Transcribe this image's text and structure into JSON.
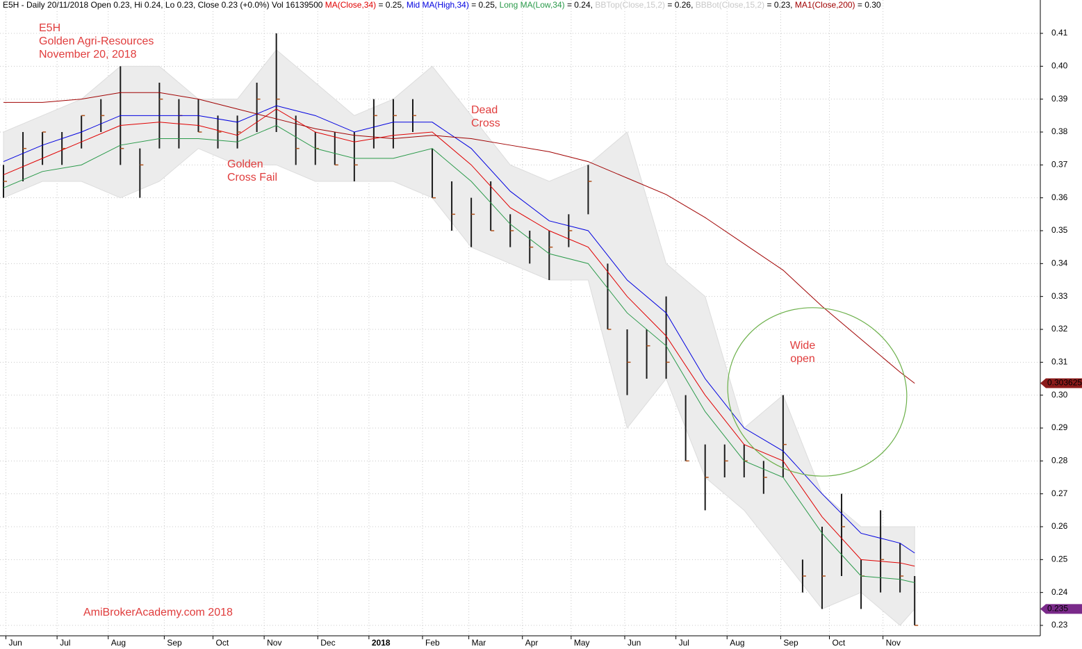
{
  "chart_data": {
    "type": "ohlc",
    "header": [
      {
        "text": "E5H - Daily 20/11/2018 Open 0.23, Hi 0.24, Lo 0.23, Close 0.23 (+0.0%) Vol 16139500 ",
        "color": "#000000"
      },
      {
        "text": "MA(Close,34)",
        "color": "#e00000"
      },
      {
        "text": " = 0.25, ",
        "color": "#000000"
      },
      {
        "text": "Mid MA(High,34)",
        "color": "#0000e0"
      },
      {
        "text": " = 0.25, ",
        "color": "#000000"
      },
      {
        "text": "Long MA(Low,34)",
        "color": "#2a9a4a"
      },
      {
        "text": " = 0.24, ",
        "color": "#000000"
      },
      {
        "text": "BBTop(Close,15,2)",
        "color": "#c8c8c8"
      },
      {
        "text": " = 0.26, ",
        "color": "#000000"
      },
      {
        "text": "BBBot(Close,15,2)",
        "color": "#c8c8c8"
      },
      {
        "text": " = 0.23, ",
        "color": "#000000"
      },
      {
        "text": "MA1(Close,200)",
        "color": "#a00000"
      },
      {
        "text": " = 0.30",
        "color": "#000000"
      }
    ],
    "annotations": [
      {
        "lines": [
          "E5H",
          "Golden Agri-Resources",
          "November 20, 2018"
        ]
      },
      {
        "lines": [
          "Golden",
          "Cross Fail"
        ]
      },
      {
        "lines": [
          "Dead",
          "Cross"
        ]
      },
      {
        "lines": [
          "Wide",
          "open"
        ]
      },
      {
        "lines": [
          "AmiBrokerAcademy.com  2018"
        ]
      }
    ],
    "xlim": [
      0,
      425
    ],
    "xticks": [
      {
        "value": 1,
        "label": "Jun"
      },
      {
        "value": 22,
        "label": "Jul"
      },
      {
        "value": 43,
        "label": "Aug"
      },
      {
        "value": 66,
        "label": "Sep"
      },
      {
        "value": 86,
        "label": "Oct"
      },
      {
        "value": 107,
        "label": "Nov"
      },
      {
        "value": 129,
        "label": "Dec"
      },
      {
        "value": 150,
        "label": "2018"
      },
      {
        "value": 172,
        "label": "Feb"
      },
      {
        "value": 191,
        "label": "Mar"
      },
      {
        "value": 213,
        "label": "Apr"
      },
      {
        "value": 233,
        "label": "May"
      },
      {
        "value": 255,
        "label": "Jun"
      },
      {
        "value": 276,
        "label": "Jul"
      },
      {
        "value": 297,
        "label": "Aug"
      },
      {
        "value": 319,
        "label": "Sep"
      },
      {
        "value": 339,
        "label": "Oct"
      },
      {
        "value": 361,
        "label": "Nov"
      }
    ],
    "ylim": [
      0.23,
      0.41
    ],
    "yticks": [
      0.23,
      0.24,
      0.25,
      0.26,
      0.27,
      0.28,
      0.29,
      {
        "value": 0.3,
        "label": "0.30"
      },
      0.31,
      0.32,
      0.33,
      0.34,
      0.35,
      0.36,
      0.37,
      0.38,
      0.39,
      {
        "value": 0.4,
        "label": "0.40"
      },
      0.41
    ],
    "grid": true,
    "bar_color": "#1a1a1a",
    "x": [
      0,
      8,
      16,
      24,
      32,
      40,
      48,
      56,
      64,
      72,
      80,
      88,
      96,
      104,
      112,
      120,
      128,
      136,
      144,
      152,
      160,
      168,
      176,
      184,
      192,
      200,
      208,
      216,
      224,
      232,
      240,
      248,
      256,
      264,
      272,
      280,
      288,
      296,
      304,
      312,
      320,
      328,
      336,
      344,
      352,
      360,
      368,
      374
    ],
    "high": [
      0.37,
      0.38,
      0.38,
      0.38,
      0.385,
      0.39,
      0.4,
      0.375,
      0.395,
      0.39,
      0.39,
      0.385,
      0.385,
      0.395,
      0.41,
      0.385,
      0.38,
      0.38,
      0.38,
      0.39,
      0.39,
      0.39,
      0.375,
      0.365,
      0.36,
      0.365,
      0.355,
      0.35,
      0.35,
      0.355,
      0.37,
      0.34,
      0.32,
      0.32,
      0.33,
      0.3,
      0.285,
      0.285,
      0.285,
      0.28,
      0.3,
      0.25,
      0.26,
      0.27,
      0.25,
      0.265,
      0.255,
      0.245
    ],
    "low": [
      0.36,
      0.365,
      0.37,
      0.37,
      0.375,
      0.38,
      0.37,
      0.36,
      0.375,
      0.375,
      0.38,
      0.375,
      0.375,
      0.38,
      0.38,
      0.37,
      0.37,
      0.37,
      0.365,
      0.375,
      0.375,
      0.38,
      0.36,
      0.35,
      0.345,
      0.35,
      0.345,
      0.34,
      0.335,
      0.345,
      0.355,
      0.32,
      0.3,
      0.305,
      0.305,
      0.28,
      0.265,
      0.275,
      0.275,
      0.27,
      0.275,
      0.24,
      0.235,
      0.245,
      0.235,
      0.24,
      0.24,
      0.23
    ],
    "close": [
      0.365,
      0.375,
      0.38,
      0.375,
      0.385,
      0.385,
      0.375,
      0.37,
      0.39,
      0.385,
      0.38,
      0.38,
      0.38,
      0.39,
      0.39,
      0.375,
      0.375,
      0.37,
      0.37,
      0.385,
      0.385,
      0.385,
      0.36,
      0.355,
      0.355,
      0.35,
      0.35,
      0.345,
      0.345,
      0.35,
      0.365,
      0.32,
      0.31,
      0.315,
      0.31,
      0.28,
      0.275,
      0.28,
      0.28,
      0.275,
      0.285,
      0.245,
      0.245,
      0.26,
      0.245,
      0.25,
      0.245,
      0.23
    ],
    "line_x": [
      0,
      16,
      32,
      48,
      64,
      80,
      96,
      112,
      128,
      144,
      160,
      176,
      192,
      208,
      224,
      240,
      256,
      272,
      288,
      304,
      320,
      336,
      352,
      368,
      374
    ],
    "band": {
      "color": "#ececec",
      "upper": [
        0.38,
        0.385,
        0.39,
        0.4,
        0.4,
        0.39,
        0.39,
        0.405,
        0.395,
        0.385,
        0.39,
        0.4,
        0.385,
        0.37,
        0.365,
        0.37,
        0.38,
        0.34,
        0.33,
        0.29,
        0.3,
        0.27,
        0.26,
        0.26,
        0.26
      ],
      "lower": [
        0.36,
        0.365,
        0.365,
        0.36,
        0.365,
        0.375,
        0.37,
        0.37,
        0.365,
        0.365,
        0.365,
        0.36,
        0.345,
        0.34,
        0.335,
        0.335,
        0.29,
        0.305,
        0.275,
        0.265,
        0.25,
        0.235,
        0.24,
        0.23,
        0.235
      ]
    },
    "lines": [
      {
        "color": "#0000e0",
        "values": [
          0.371,
          0.376,
          0.38,
          0.385,
          0.385,
          0.385,
          0.383,
          0.388,
          0.385,
          0.38,
          0.383,
          0.383,
          0.375,
          0.362,
          0.353,
          0.35,
          0.335,
          0.325,
          0.305,
          0.29,
          0.283,
          0.27,
          0.258,
          0.255,
          0.252
        ]
      },
      {
        "color": "#e00000",
        "values": [
          0.367,
          0.372,
          0.377,
          0.382,
          0.383,
          0.382,
          0.379,
          0.387,
          0.38,
          0.377,
          0.379,
          0.38,
          0.37,
          0.357,
          0.35,
          0.345,
          0.33,
          0.318,
          0.3,
          0.285,
          0.28,
          0.263,
          0.25,
          0.249,
          0.248
        ]
      },
      {
        "color": "#2a9a4a",
        "values": [
          0.363,
          0.368,
          0.37,
          0.376,
          0.378,
          0.378,
          0.377,
          0.382,
          0.375,
          0.372,
          0.372,
          0.375,
          0.365,
          0.352,
          0.343,
          0.34,
          0.325,
          0.315,
          0.295,
          0.28,
          0.275,
          0.258,
          0.245,
          0.244,
          0.243
        ]
      },
      {
        "color": "#a00000",
        "values": [
          0.389,
          0.389,
          0.39,
          0.392,
          0.392,
          0.39,
          0.387,
          0.384,
          0.381,
          0.379,
          0.378,
          0.379,
          0.378,
          0.376,
          0.374,
          0.371,
          0.366,
          0.361,
          0.354,
          0.346,
          0.338,
          0.327,
          0.317,
          0.307,
          0.3036
        ]
      }
    ],
    "price_markers": [
      {
        "value": 0.303625,
        "color": "#8b1a1a"
      },
      {
        "value": 0.235,
        "color": "#7a2a8a"
      }
    ]
  }
}
